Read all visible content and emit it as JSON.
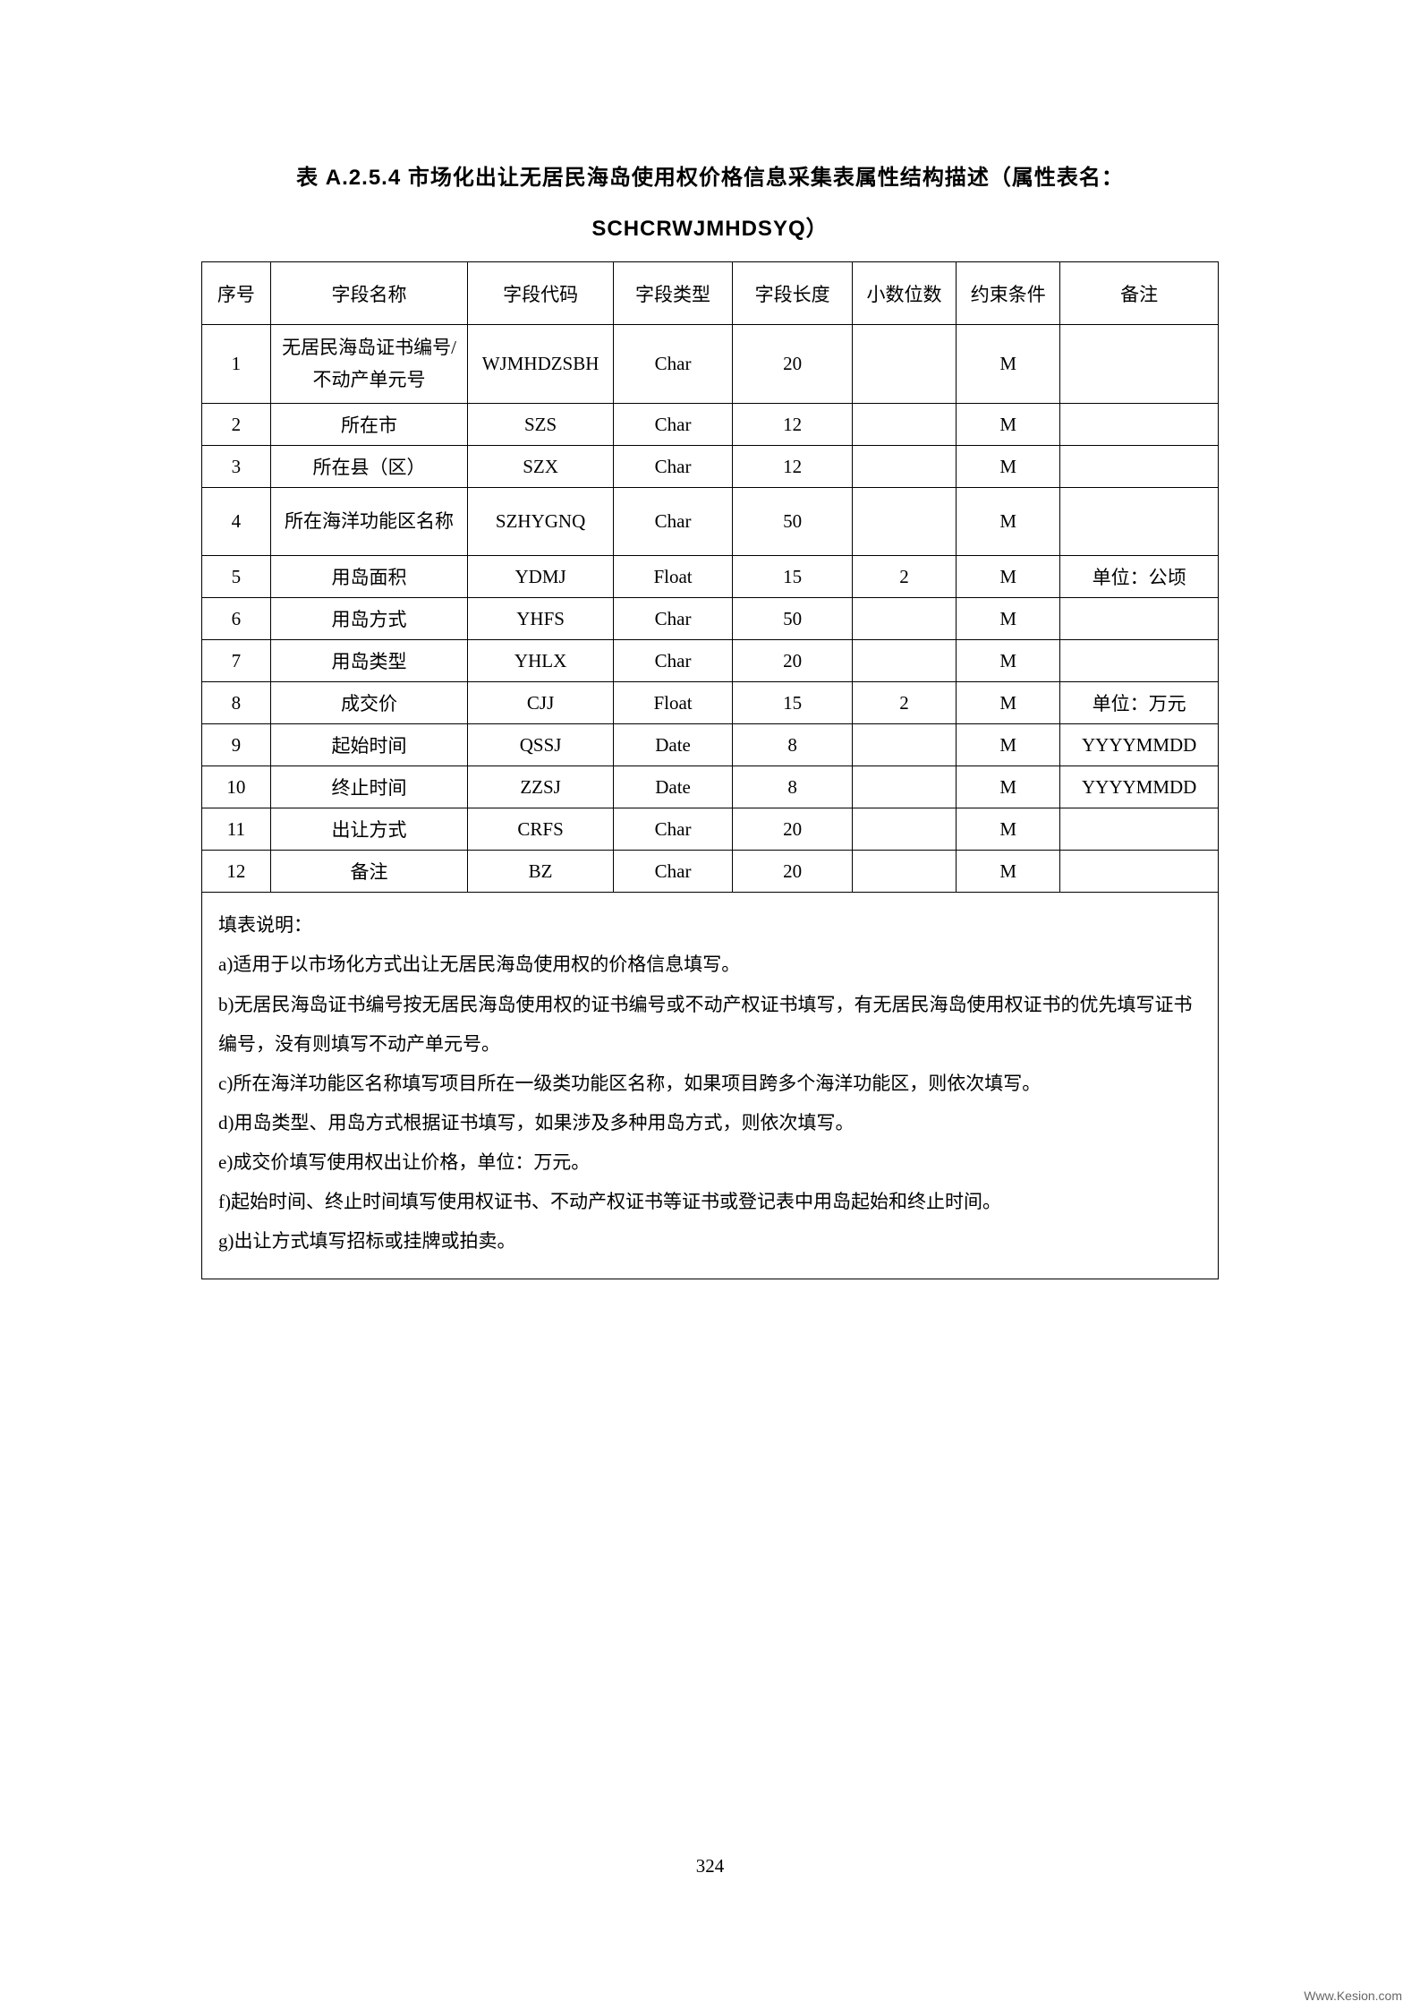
{
  "title": {
    "line1": "表 A.2.5.4 市场化出让无居民海岛使用权价格信息采集表属性结构描述（属性表名：",
    "line2": "SCHCRWJMHDSYQ）"
  },
  "table": {
    "columns": [
      "序号",
      "字段名称",
      "字段代码",
      "字段类型",
      "字段长度",
      "小数位数",
      "约束条件",
      "备注"
    ],
    "rows": [
      {
        "seq": "1",
        "name": "无居民海岛证书编号/不动产单元号",
        "code": "WJMHDZSBH",
        "type": "Char",
        "len": "20",
        "dec": "",
        "con": "M",
        "note": "",
        "tall": true
      },
      {
        "seq": "2",
        "name": "所在市",
        "code": "SZS",
        "type": "Char",
        "len": "12",
        "dec": "",
        "con": "M",
        "note": "",
        "tall": false
      },
      {
        "seq": "3",
        "name": "所在县（区）",
        "code": "SZX",
        "type": "Char",
        "len": "12",
        "dec": "",
        "con": "M",
        "note": "",
        "tall": false
      },
      {
        "seq": "4",
        "name": "所在海洋功能区名称",
        "code": "SZHYGNQ",
        "type": "Char",
        "len": "50",
        "dec": "",
        "con": "M",
        "note": "",
        "tall": true
      },
      {
        "seq": "5",
        "name": "用岛面积",
        "code": "YDMJ",
        "type": "Float",
        "len": "15",
        "dec": "2",
        "con": "M",
        "note": "单位：公顷",
        "tall": false
      },
      {
        "seq": "6",
        "name": "用岛方式",
        "code": "YHFS",
        "type": "Char",
        "len": "50",
        "dec": "",
        "con": "M",
        "note": "",
        "tall": false
      },
      {
        "seq": "7",
        "name": "用岛类型",
        "code": "YHLX",
        "type": "Char",
        "len": "20",
        "dec": "",
        "con": "M",
        "note": "",
        "tall": false
      },
      {
        "seq": "8",
        "name": "成交价",
        "code": "CJJ",
        "type": "Float",
        "len": "15",
        "dec": "2",
        "con": "M",
        "note": "单位：万元",
        "tall": false
      },
      {
        "seq": "9",
        "name": "起始时间",
        "code": "QSSJ",
        "type": "Date",
        "len": "8",
        "dec": "",
        "con": "M",
        "note": "YYYYMMDD",
        "tall": false
      },
      {
        "seq": "10",
        "name": "终止时间",
        "code": "ZZSJ",
        "type": "Date",
        "len": "8",
        "dec": "",
        "con": "M",
        "note": "YYYYMMDD",
        "tall": false
      },
      {
        "seq": "11",
        "name": "出让方式",
        "code": "CRFS",
        "type": "Char",
        "len": "20",
        "dec": "",
        "con": "M",
        "note": "",
        "tall": false
      },
      {
        "seq": "12",
        "name": "备注",
        "code": "BZ",
        "type": "Char",
        "len": "20",
        "dec": "",
        "con": "M",
        "note": "",
        "tall": false
      }
    ]
  },
  "notes": {
    "header": "填表说明：",
    "items": [
      "a)适用于以市场化方式出让无居民海岛使用权的价格信息填写。",
      "b)无居民海岛证书编号按无居民海岛使用权的证书编号或不动产权证书填写，有无居民海岛使用权证书的优先填写证书编号，没有则填写不动产单元号。",
      "c)所在海洋功能区名称填写项目所在一级类功能区名称，如果项目跨多个海洋功能区，则依次填写。",
      "d)用岛类型、用岛方式根据证书填写，如果涉及多种用岛方式，则依次填写。",
      "e)成交价填写使用权出让价格，单位：万元。",
      "f)起始时间、终止时间填写使用权证书、不动产权证书等证书或登记表中用岛起始和终止时间。",
      "g)出让方式填写招标或挂牌或拍卖。"
    ]
  },
  "pageNumber": "324",
  "watermark": "Www.Kesion.com"
}
